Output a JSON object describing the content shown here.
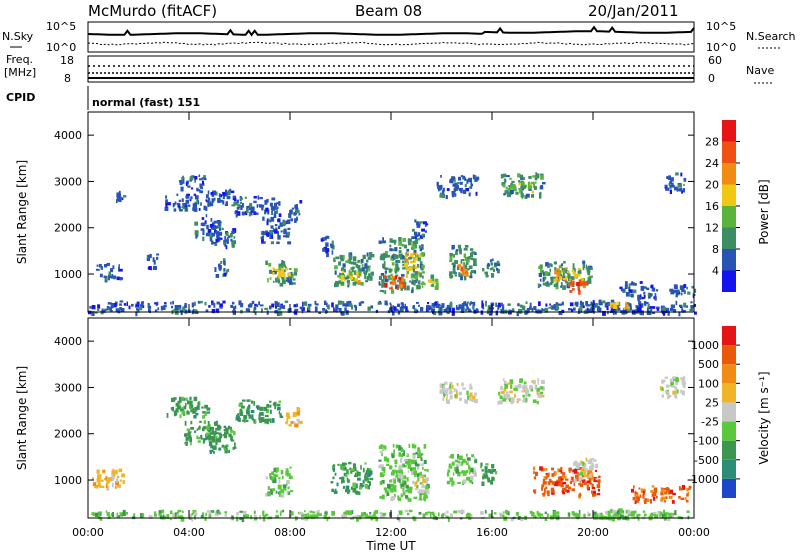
{
  "header": {
    "station": "McMurdo (fitACF)",
    "beam": "Beam 08",
    "date": "20/Jan/2011"
  },
  "noise_panel": {
    "left_label": "N.Sky",
    "right_label": "N.Search",
    "left_ticks": [
      "10^5",
      "10^0"
    ],
    "right_ticks": [
      "10^5",
      "10^0"
    ]
  },
  "freq_panel": {
    "left_label_line1": "Freq.",
    "left_label_line2": "[MHz]",
    "right_label": "Nave",
    "left_ticks": [
      "18",
      "8"
    ],
    "right_ticks": [
      "60",
      "0"
    ]
  },
  "cpid": {
    "label": "CPID",
    "value": "normal (fast) 151"
  },
  "chart_data": [
    {
      "type": "heatmap",
      "title": "",
      "ylabel": "Slant Range [km]",
      "xlabel": "",
      "ylim": [
        180,
        4500
      ],
      "yticks": [
        "1000",
        "2000",
        "3000",
        "4000"
      ],
      "colorbar": {
        "label": "Power [dB]",
        "ticks": [
          "4",
          "8",
          "12",
          "16",
          "20",
          "24",
          "28"
        ],
        "colors": [
          "#1414f0",
          "#2855b4",
          "#3c8c64",
          "#5ab43c",
          "#f0c814",
          "#f08c14",
          "#f05014",
          "#e61414"
        ]
      },
      "regions": [
        {
          "t0": 0.0,
          "t1": 24.0,
          "r0": 190,
          "r1": 430,
          "level": 1
        },
        {
          "t0": 0.3,
          "t1": 1.3,
          "r0": 900,
          "r1": 1250,
          "level": 1
        },
        {
          "t0": 1.0,
          "t1": 1.4,
          "r0": 2600,
          "r1": 2800,
          "level": 1
        },
        {
          "t0": 2.3,
          "t1": 2.7,
          "r0": 1100,
          "r1": 1450,
          "level": 1
        },
        {
          "t0": 3.0,
          "t1": 4.8,
          "r0": 2400,
          "r1": 2750,
          "level": 1
        },
        {
          "t0": 3.6,
          "t1": 4.6,
          "r0": 2800,
          "r1": 3150,
          "level": 1
        },
        {
          "t0": 4.2,
          "t1": 5.2,
          "r0": 1800,
          "r1": 2300,
          "level": 1
        },
        {
          "t0": 4.6,
          "t1": 5.8,
          "r0": 2500,
          "r1": 2850,
          "level": 1
        },
        {
          "t0": 4.8,
          "t1": 5.8,
          "r0": 1600,
          "r1": 2000,
          "level": 1
        },
        {
          "t0": 5.0,
          "t1": 5.5,
          "r0": 1000,
          "r1": 1350,
          "level": 1
        },
        {
          "t0": 5.8,
          "t1": 7.6,
          "r0": 2300,
          "r1": 2700,
          "level": 1
        },
        {
          "t0": 6.8,
          "t1": 7.9,
          "r0": 1700,
          "r1": 2250,
          "level": 1
        },
        {
          "t0": 7.0,
          "t1": 8.2,
          "r0": 800,
          "r1": 1300,
          "level": 2
        },
        {
          "t0": 7.3,
          "t1": 7.9,
          "r0": 900,
          "r1": 1150,
          "level": 4
        },
        {
          "t0": 7.9,
          "t1": 8.4,
          "r0": 2200,
          "r1": 2600,
          "level": 1
        },
        {
          "t0": 9.2,
          "t1": 9.7,
          "r0": 1450,
          "r1": 1850,
          "level": 1
        },
        {
          "t0": 9.7,
          "t1": 11.2,
          "r0": 800,
          "r1": 1500,
          "level": 2
        },
        {
          "t0": 10.0,
          "t1": 10.8,
          "r0": 850,
          "r1": 1100,
          "level": 4
        },
        {
          "t0": 11.5,
          "t1": 13.3,
          "r0": 650,
          "r1": 1800,
          "level": 2
        },
        {
          "t0": 11.7,
          "t1": 12.5,
          "r0": 700,
          "r1": 1000,
          "level": 6
        },
        {
          "t0": 12.5,
          "t1": 13.1,
          "r0": 1000,
          "r1": 1500,
          "level": 4
        },
        {
          "t0": 12.8,
          "t1": 13.4,
          "r0": 1800,
          "r1": 2200,
          "level": 1
        },
        {
          "t0": 13.2,
          "t1": 13.8,
          "r0": 700,
          "r1": 1000,
          "level": 3
        },
        {
          "t0": 13.8,
          "t1": 15.4,
          "r0": 2700,
          "r1": 3150,
          "level": 1
        },
        {
          "t0": 14.3,
          "t1": 15.3,
          "r0": 950,
          "r1": 1650,
          "level": 2
        },
        {
          "t0": 14.6,
          "t1": 15.0,
          "r0": 1000,
          "r1": 1250,
          "level": 5
        },
        {
          "t0": 15.6,
          "t1": 16.2,
          "r0": 950,
          "r1": 1350,
          "level": 2
        },
        {
          "t0": 16.3,
          "t1": 18.0,
          "r0": 2700,
          "r1": 3200,
          "level": 2
        },
        {
          "t0": 16.8,
          "t1": 17.6,
          "r0": 2800,
          "r1": 3000,
          "level": 3
        },
        {
          "t0": 17.8,
          "t1": 19.9,
          "r0": 750,
          "r1": 1300,
          "level": 2
        },
        {
          "t0": 18.4,
          "t1": 19.5,
          "r0": 900,
          "r1": 1150,
          "level": 4
        },
        {
          "t0": 19.0,
          "t1": 19.7,
          "r0": 650,
          "r1": 900,
          "level": 6
        },
        {
          "t0": 19.8,
          "t1": 22.0,
          "r0": 200,
          "r1": 450,
          "level": 1
        },
        {
          "t0": 20.6,
          "t1": 21.4,
          "r0": 250,
          "r1": 420,
          "level": 4
        },
        {
          "t0": 21.0,
          "t1": 22.5,
          "r0": 500,
          "r1": 850,
          "level": 1
        },
        {
          "t0": 22.8,
          "t1": 23.6,
          "r0": 2800,
          "r1": 3200,
          "level": 1
        },
        {
          "t0": 23.0,
          "t1": 24.0,
          "r0": 550,
          "r1": 800,
          "level": 1
        }
      ]
    },
    {
      "type": "heatmap",
      "title": "",
      "ylabel": "Slant Range [km]",
      "xlabel": "Time UT",
      "ylim": [
        180,
        4500
      ],
      "yticks": [
        "1000",
        "2000",
        "3000",
        "4000"
      ],
      "colorbar": {
        "label": "Velocity [m s⁻¹]",
        "ticks": [
          "1000",
          "500",
          "100",
          "25",
          "-25",
          "-100",
          "-500",
          "-1000"
        ],
        "colors": [
          "#1e46c8",
          "#2d8c78",
          "#3c9650",
          "#5ac83c",
          "#c8c8c8",
          "#f0b428",
          "#f08c14",
          "#e85a0a",
          "#e61414"
        ]
      },
      "regions": [
        {
          "t0": 0.0,
          "t1": 24.0,
          "r0": 190,
          "r1": 360,
          "level": 3
        },
        {
          "t0": 0.1,
          "t1": 1.4,
          "r0": 850,
          "r1": 1250,
          "level": 5
        },
        {
          "t0": 3.0,
          "t1": 4.7,
          "r0": 2400,
          "r1": 2800,
          "level": 2
        },
        {
          "t0": 3.8,
          "t1": 5.2,
          "r0": 1800,
          "r1": 2300,
          "level": 2
        },
        {
          "t0": 4.6,
          "t1": 5.8,
          "r0": 1600,
          "r1": 2200,
          "level": 2
        },
        {
          "t0": 5.8,
          "t1": 7.6,
          "r0": 2300,
          "r1": 2750,
          "level": 2
        },
        {
          "t0": 7.0,
          "t1": 8.0,
          "r0": 700,
          "r1": 1300,
          "level": 3
        },
        {
          "t0": 7.8,
          "t1": 8.4,
          "r0": 2200,
          "r1": 2600,
          "level": 5
        },
        {
          "t0": 9.6,
          "t1": 11.2,
          "r0": 750,
          "r1": 1400,
          "level": 2
        },
        {
          "t0": 11.5,
          "t1": 13.4,
          "r0": 600,
          "r1": 1800,
          "level": 3
        },
        {
          "t0": 12.8,
          "t1": 13.4,
          "r0": 750,
          "r1": 1100,
          "level": 4
        },
        {
          "t0": 13.9,
          "t1": 15.3,
          "r0": 2700,
          "r1": 3150,
          "level": 4
        },
        {
          "t0": 14.2,
          "t1": 15.3,
          "r0": 950,
          "r1": 1600,
          "level": 3
        },
        {
          "t0": 15.5,
          "t1": 16.2,
          "r0": 950,
          "r1": 1400,
          "level": 2
        },
        {
          "t0": 16.2,
          "t1": 18.0,
          "r0": 2700,
          "r1": 3200,
          "level": 4
        },
        {
          "t0": 17.6,
          "t1": 20.2,
          "r0": 700,
          "r1": 1300,
          "level": 7
        },
        {
          "t0": 19.2,
          "t1": 20.1,
          "r0": 1000,
          "r1": 1500,
          "level": 4
        },
        {
          "t0": 20.0,
          "t1": 21.8,
          "r0": 190,
          "r1": 400,
          "level": 3
        },
        {
          "t0": 21.5,
          "t1": 23.8,
          "r0": 550,
          "r1": 900,
          "level": 7
        },
        {
          "t0": 22.6,
          "t1": 23.6,
          "r0": 2800,
          "r1": 3250,
          "level": 4
        }
      ]
    }
  ],
  "xaxis": {
    "label": "Time UT",
    "ticks": [
      "00:00",
      "04:00",
      "08:00",
      "12:00",
      "16:00",
      "20:00",
      "00:00"
    ]
  }
}
